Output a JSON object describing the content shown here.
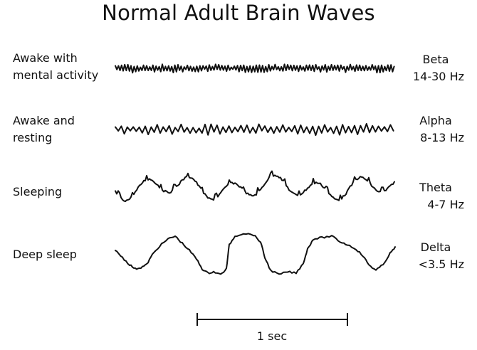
{
  "title": "Normal Adult Brain Waves",
  "rows": [
    {
      "state_lines": [
        "Awake with",
        "mental activity"
      ],
      "band": "Beta",
      "freq": "14-30 Hz"
    },
    {
      "state_lines": [
        "Awake and",
        "resting"
      ],
      "band": "Alpha",
      "freq": "8-13 Hz"
    },
    {
      "state_lines": [
        "Sleeping"
      ],
      "band": "Theta",
      "freq": "4-7 Hz"
    },
    {
      "state_lines": [
        "Deep sleep"
      ],
      "band": "Delta",
      "freq": "<3.5 Hz"
    }
  ],
  "scale": {
    "label": "1 sec"
  },
  "colors": {
    "ink": "#111111",
    "background": "#ffffff"
  }
}
